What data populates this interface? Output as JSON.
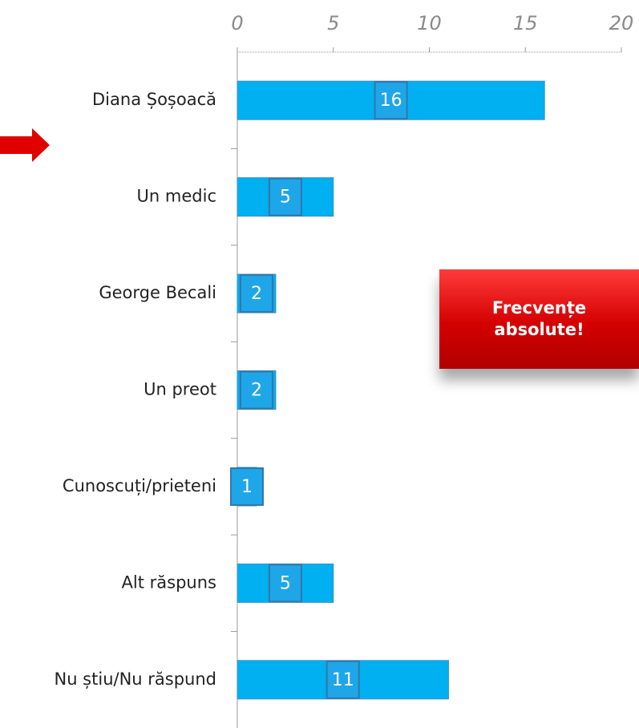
{
  "chart_data": {
    "type": "hbar",
    "categories": [
      "Diana Șoșoacă",
      "Un medic",
      "George Becali",
      "Un preot",
      "Cunoscuți/prieteni",
      "Alt răspuns",
      "Nu știu/Nu răspund"
    ],
    "values": [
      16,
      5,
      2,
      2,
      1,
      5,
      11
    ],
    "color": "#00b0f0",
    "xlim": [
      0,
      20
    ],
    "xticks": [
      0,
      5,
      10,
      15,
      20
    ],
    "annotation": "Frecvențe absolute!"
  }
}
